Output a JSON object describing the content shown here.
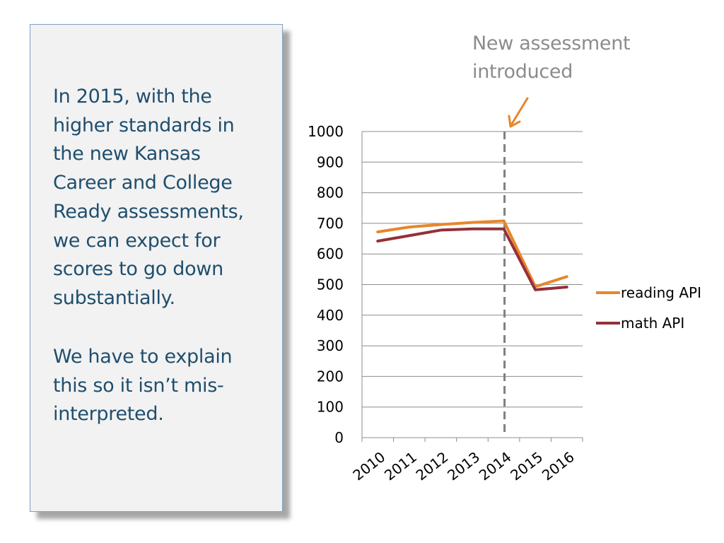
{
  "text_box": {
    "paragraph_1": "In 2015, with the higher standards in the new Kansas Career and College Ready assessments, we can expect for scores to go down substantially.",
    "paragraph_2": "We have to explain this so it isn’t mis-interpreted."
  },
  "annotation": {
    "text": "New assessment introduced",
    "color": "#8c8c8c",
    "arrow_color": "#e8862a"
  },
  "chart_data": {
    "type": "line",
    "title": "",
    "xlabel": "",
    "ylabel": "",
    "categories": [
      "2010",
      "2011",
      "2012",
      "2013",
      "2014",
      "2015",
      "2016"
    ],
    "ylim": [
      0,
      1000
    ],
    "yticks": [
      "0",
      "100",
      "200",
      "300",
      "400",
      "500",
      "600",
      "700",
      "800",
      "900",
      "1000"
    ],
    "grid": true,
    "legend_position": "right",
    "marker_line_at": "2014",
    "series": [
      {
        "name": "reading API",
        "color": "#e8862a",
        "values": [
          672,
          688,
          696,
          703,
          708,
          493,
          526
        ]
      },
      {
        "name": "math API",
        "color": "#943038",
        "values": [
          642,
          660,
          678,
          682,
          682,
          483,
          492
        ]
      }
    ]
  }
}
